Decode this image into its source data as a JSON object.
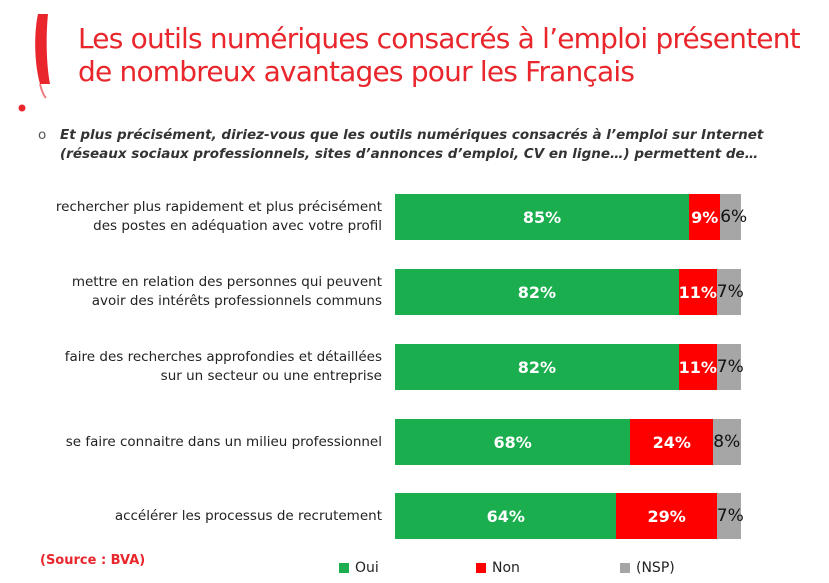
{
  "title": {
    "line1": "Les outils numériques consacrés à l’emploi présentent",
    "line2": "de nombreux avantages pour les Français"
  },
  "question": {
    "bullet": "o",
    "text": "Et plus précisément, diriez-vous que les outils numériques consacrés à l’emploi sur Internet (réseaux sociaux professionnels, sites d’annonces d’emploi, CV en ligne…) permettent de…"
  },
  "source": "(Source : BVA)",
  "colors": {
    "title": "#e8262c",
    "oui": "#1aae4f",
    "non": "#ff0000",
    "nsp": "#a6a6a6"
  },
  "chart_data": {
    "type": "bar",
    "stacked": true,
    "orientation": "horizontal",
    "categories": [
      [
        "rechercher plus rapidement et plus précisément",
        "des postes en adéquation avec votre profil"
      ],
      [
        "mettre en relation des personnes qui peuvent",
        "avoir des intérêts professionnels communs"
      ],
      [
        "faire des recherches approfondies et détaillées",
        "sur un secteur ou une entreprise"
      ],
      [
        "se faire connaitre dans un milieu professionnel"
      ],
      [
        "accélérer les processus de recrutement"
      ]
    ],
    "series": [
      {
        "name": "Oui",
        "values": [
          85,
          82,
          82,
          68,
          64
        ],
        "labels": [
          "85%",
          "82%",
          "82%",
          "68%",
          "64%"
        ]
      },
      {
        "name": "Non",
        "values": [
          9,
          11,
          11,
          24,
          29
        ],
        "labels": [
          "9%",
          "11%",
          "11%",
          "24%",
          "29%"
        ]
      },
      {
        "name": "(NSP)",
        "values": [
          6,
          7,
          7,
          8,
          7
        ],
        "labels": [
          "6%",
          "7%",
          "7%",
          "8%",
          "7%"
        ]
      }
    ],
    "xlim": [
      0,
      100
    ],
    "legend": "bottom"
  }
}
